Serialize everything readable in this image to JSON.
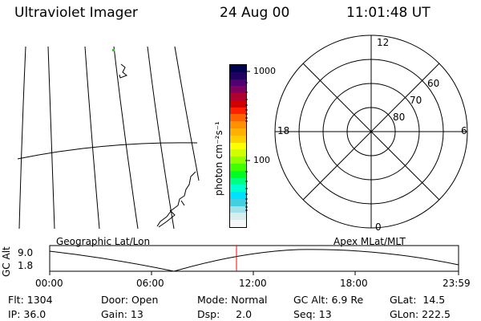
{
  "header": {
    "title": "Ultraviolet Imager",
    "date": "24 Aug 00",
    "time": "11:01:48 UT"
  },
  "colorbar": {
    "unit_label": "photon cm⁻²s⁻¹",
    "ticks": [
      "1000",
      "100"
    ],
    "colors": [
      "#000050",
      "#200060",
      "#500070",
      "#800060",
      "#b00030",
      "#d00000",
      "#ff2000",
      "#ff6000",
      "#ff9000",
      "#ffb000",
      "#ffd000",
      "#ffff00",
      "#d0ff00",
      "#90ff00",
      "#40ff00",
      "#00ff20",
      "#00ff80",
      "#00ffd0",
      "#00e0ff",
      "#40d0e0",
      "#a0e0e8",
      "#d8eeee",
      "#f4f8f8"
    ]
  },
  "polar_plot": {
    "mlt_labels": [
      "12",
      "18",
      "6",
      "0"
    ],
    "lat_labels": [
      "60",
      "70",
      "80"
    ]
  },
  "timeline": {
    "ylabel": "GC Alt",
    "yticks": [
      "9.0",
      "1.8"
    ],
    "left_label": "Geographic Lat/Lon",
    "right_label": "Apex MLat/MLT",
    "xticks": [
      "00:00",
      "06:00",
      "12:00",
      "18:00",
      "23:59"
    ],
    "current_time_color": "#ff0000"
  },
  "status": {
    "flt": "Flt: 1304",
    "ip": "IP: 36.0",
    "door": "Door: Open",
    "gain": "Gain: 13",
    "mode": "Mode: Normal",
    "dsp": "Dsp:     2.0",
    "gc_alt": "GC Alt: 6.9 Re",
    "seq": "Seq: 13",
    "glat": "GLat:  14.5",
    "glon": "GLon: 222.5"
  }
}
